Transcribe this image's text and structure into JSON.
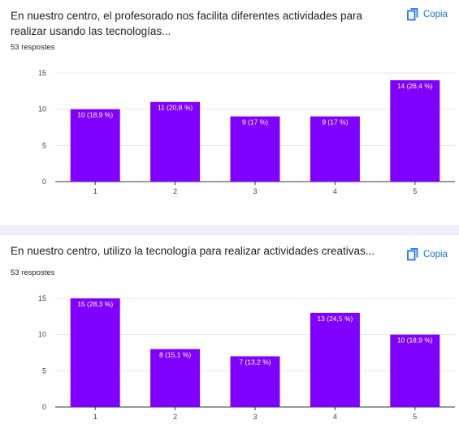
{
  "accent": "#1a73e8",
  "bar_color": "#8000ff",
  "questions": [
    {
      "text": "En nuestro centro, el profesorado nos facilita diferentes actividades para realizar usando las tecnologías...",
      "responses": "53 respostes",
      "copy_label": "Copia",
      "copy_icon": "copy-icon"
    },
    {
      "text": "En nuestro centro, utilizo la tecnología para realizar actividades creativas...",
      "responses": "53 respostes",
      "copy_label": "Copia",
      "copy_icon": "copy-icon"
    }
  ],
  "chart_data": [
    {
      "type": "bar",
      "categories": [
        "1",
        "2",
        "3",
        "4",
        "5"
      ],
      "values": [
        10,
        11,
        9,
        9,
        14
      ],
      "data_labels": [
        "10 (18,9 %)",
        "11 (20,8 %)",
        "9 (17 %)",
        "9 (17 %)",
        "14 (26,4 %)"
      ],
      "yticks": [
        0,
        5,
        10,
        15
      ],
      "ylim": [
        0,
        15
      ],
      "grid": true
    },
    {
      "type": "bar",
      "categories": [
        "1",
        "2",
        "3",
        "4",
        "5"
      ],
      "values": [
        15,
        8,
        7,
        13,
        10
      ],
      "data_labels": [
        "15 (28,3 %)",
        "8 (15,1 %)",
        "7 (13,2 %)",
        "13 (24,5 %)",
        "10 (18,9 %)"
      ],
      "yticks": [
        0,
        5,
        10,
        15
      ],
      "ylim": [
        0,
        15
      ],
      "grid": true
    }
  ]
}
